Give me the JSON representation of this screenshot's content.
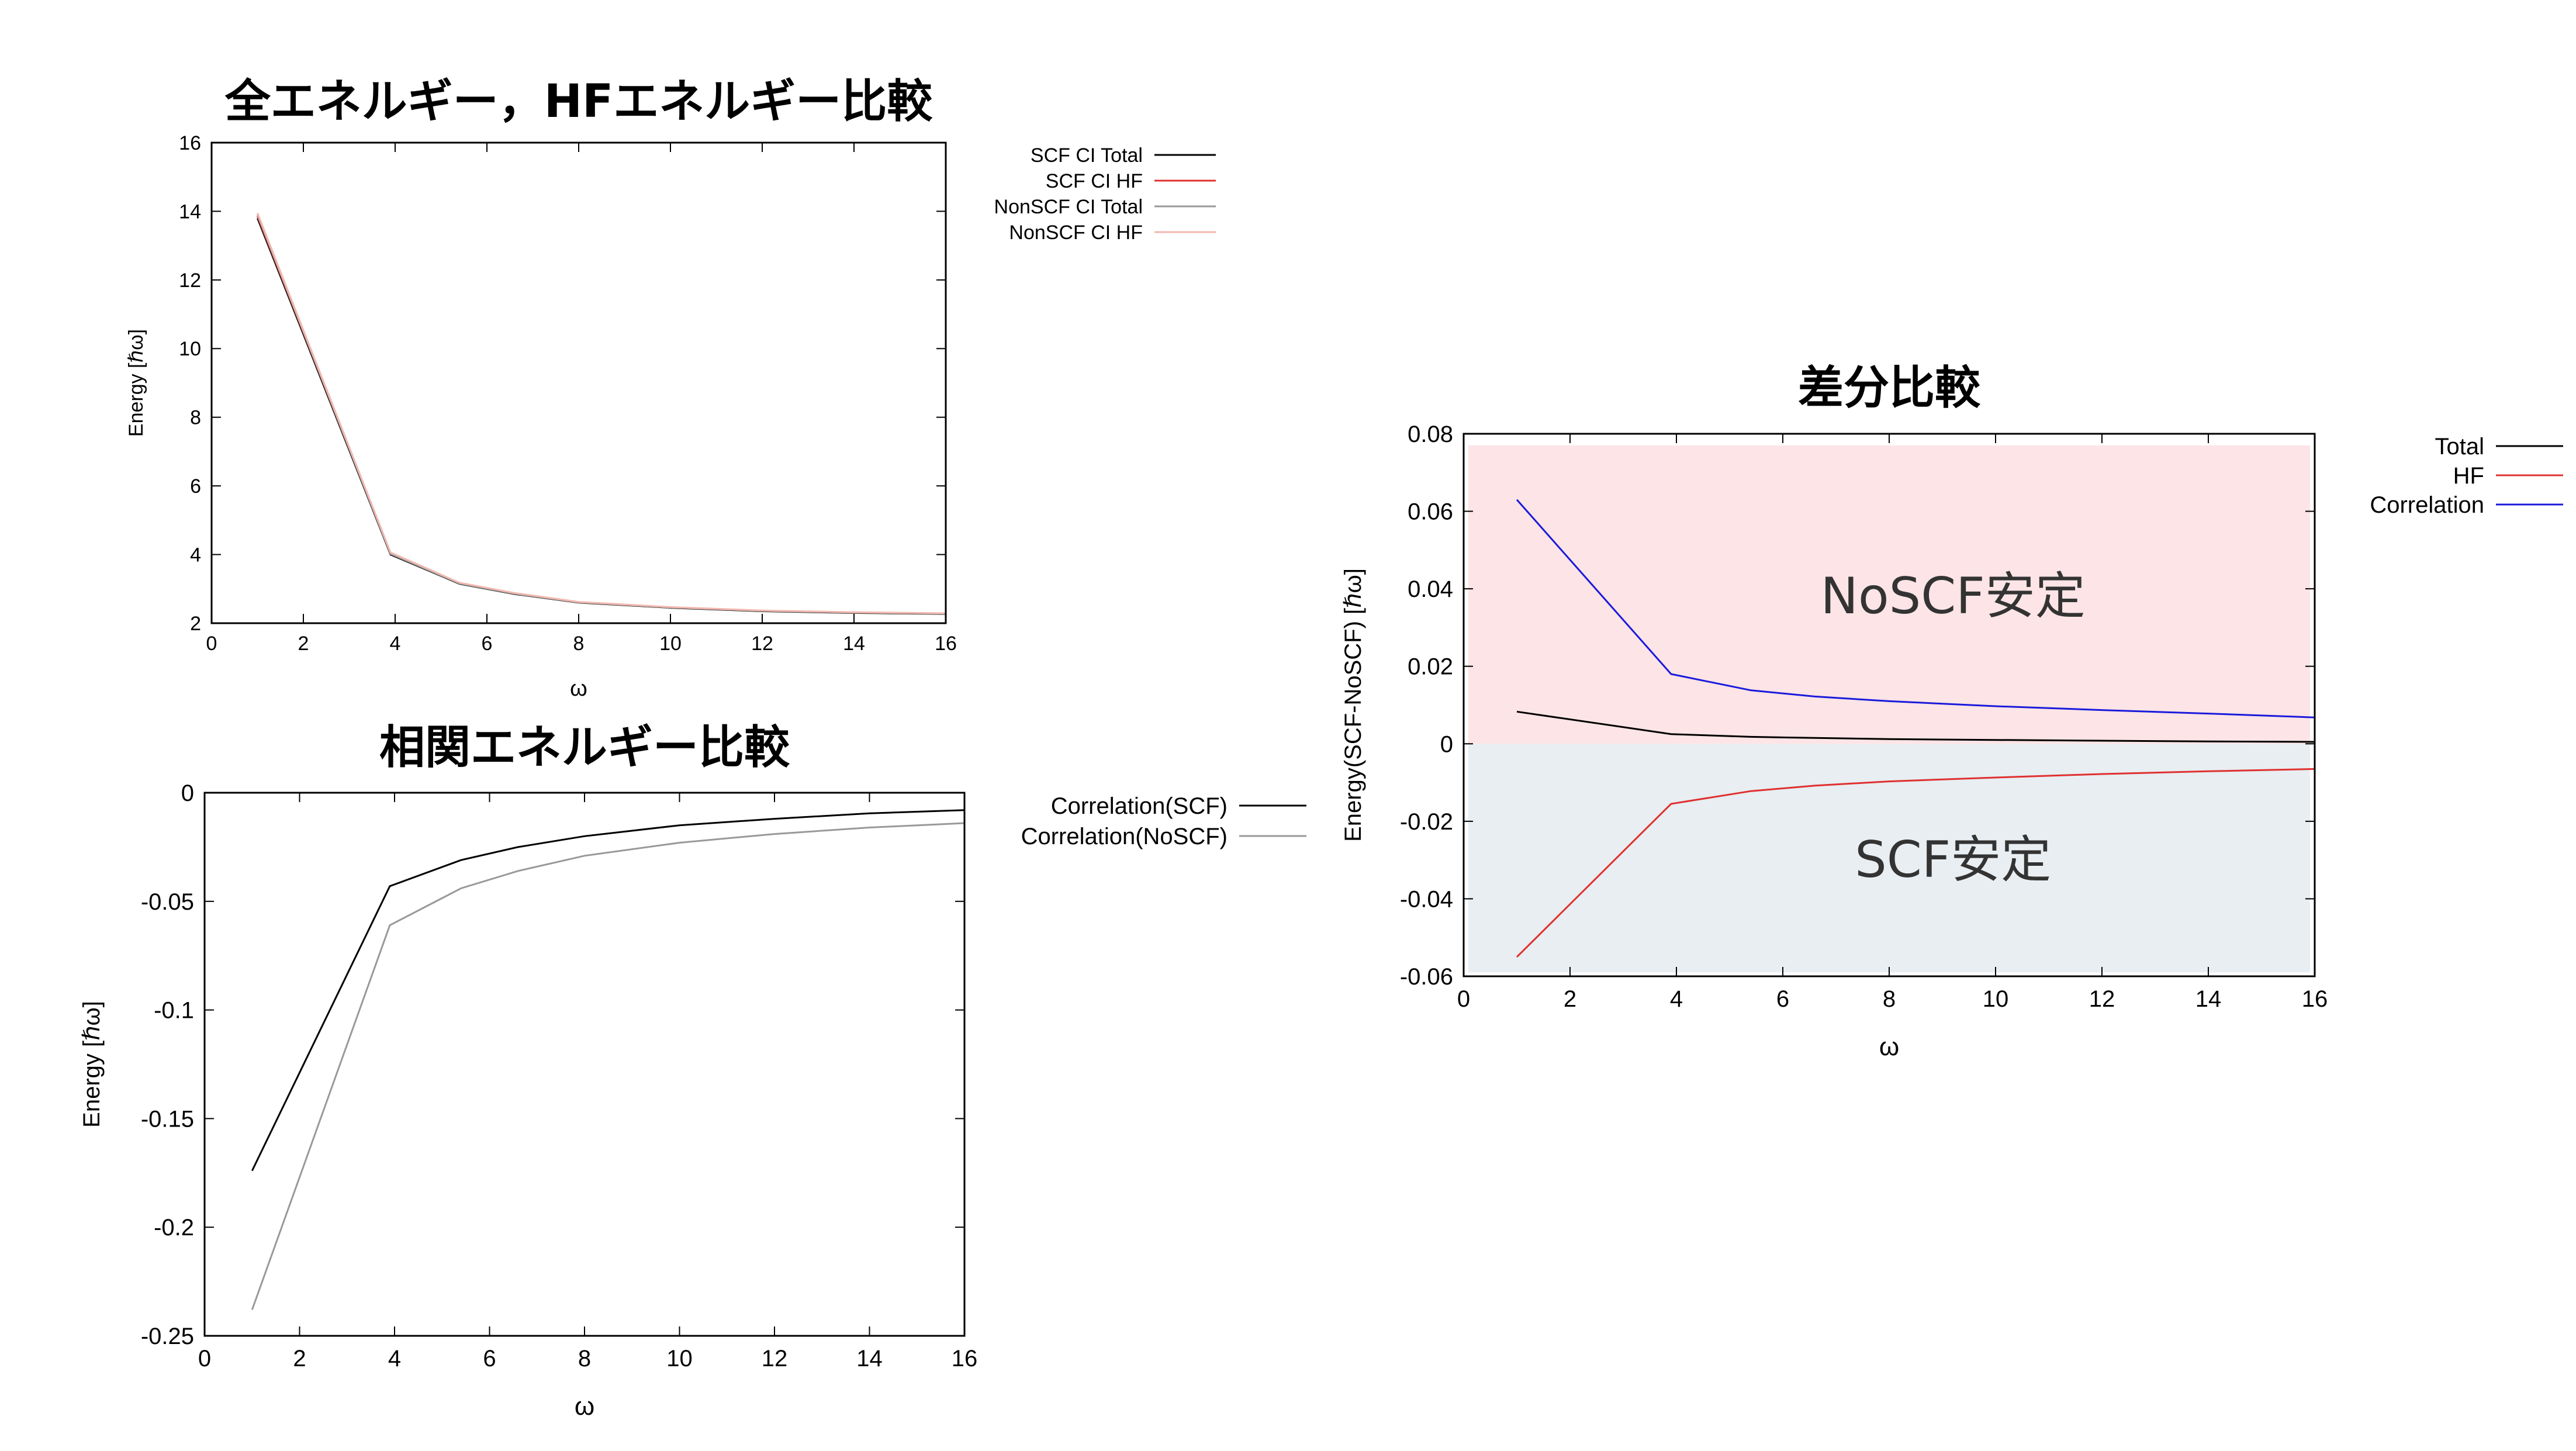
{
  "chart_data": [
    {
      "type": "line",
      "title": "全エネルギー，HFエネルギー比較",
      "xlabel": "ω",
      "ylabel": "Energy [ℏω]",
      "xlim": [
        0,
        16
      ],
      "ylim": [
        2,
        16
      ],
      "xticks": [
        "0",
        "2",
        "4",
        "6",
        "8",
        "10",
        "12",
        "14",
        "16"
      ],
      "yticks": [
        "2",
        "4",
        "6",
        "8",
        "10",
        "12",
        "14",
        "16"
      ],
      "legend_position": "right-outside-top",
      "series": [
        {
          "name": "SCF CI Total",
          "color": "#000000",
          "x": [
            1,
            3.9,
            5.4,
            6.6,
            8,
            10,
            12,
            14,
            16
          ],
          "y": [
            13.8,
            4.0,
            3.15,
            2.85,
            2.6,
            2.45,
            2.35,
            2.3,
            2.27
          ]
        },
        {
          "name": "SCF CI HF",
          "color": "#e03030",
          "x": [
            1,
            3.9,
            5.4,
            6.6,
            8,
            10,
            12,
            14,
            16
          ],
          "y": [
            13.86,
            4.04,
            3.17,
            2.87,
            2.61,
            2.46,
            2.36,
            2.31,
            2.28
          ]
        },
        {
          "name": "NonSCF CI Total",
          "color": "#999999",
          "x": [
            1,
            3.9,
            5.4,
            6.6,
            8,
            10,
            12,
            14,
            16
          ],
          "y": [
            13.9,
            4.02,
            3.16,
            2.86,
            2.61,
            2.46,
            2.36,
            2.31,
            2.28
          ]
        },
        {
          "name": "NonSCF CI HF",
          "color": "#f2b8b0",
          "x": [
            1,
            3.9,
            5.4,
            6.6,
            8,
            10,
            12,
            14,
            16
          ],
          "y": [
            13.95,
            4.06,
            3.18,
            2.88,
            2.62,
            2.47,
            2.37,
            2.32,
            2.29
          ]
        }
      ]
    },
    {
      "type": "line",
      "title": "相関エネルギー比較",
      "xlabel": "ω",
      "ylabel": "Energy [ℏω]",
      "xlim": [
        0,
        16
      ],
      "ylim": [
        -0.25,
        0
      ],
      "xticks": [
        "0",
        "2",
        "4",
        "6",
        "8",
        "10",
        "12",
        "14",
        "16"
      ],
      "yticks": [
        "0",
        "-0.05",
        "-0.1",
        "-0.15",
        "-0.2",
        "-0.25"
      ],
      "legend_position": "right-outside-top",
      "series": [
        {
          "name": "Correlation(SCF)",
          "color": "#000000",
          "x": [
            1,
            3.9,
            5.4,
            6.6,
            8,
            10,
            12,
            14,
            16
          ],
          "y": [
            -0.174,
            -0.043,
            -0.031,
            -0.025,
            -0.02,
            -0.015,
            -0.012,
            -0.0095,
            -0.008
          ]
        },
        {
          "name": "Correlation(NoSCF)",
          "color": "#999999",
          "x": [
            1,
            3.9,
            5.4,
            6.6,
            8,
            10,
            12,
            14,
            16
          ],
          "y": [
            -0.238,
            -0.061,
            -0.044,
            -0.036,
            -0.029,
            -0.023,
            -0.019,
            -0.016,
            -0.014
          ]
        }
      ]
    },
    {
      "type": "line",
      "title": "差分比較",
      "xlabel": "ω",
      "ylabel": "Energy(SCF-NoSCF) [ℏω]",
      "xlim": [
        0,
        16
      ],
      "ylim": [
        -0.06,
        0.08
      ],
      "xticks": [
        "0",
        "2",
        "4",
        "6",
        "8",
        "10",
        "12",
        "14",
        "16"
      ],
      "yticks": [
        "0.08",
        "0.06",
        "0.04",
        "0.02",
        "0",
        "-0.02",
        "-0.04",
        "-0.06"
      ],
      "legend_position": "right-outside-top",
      "regions": [
        {
          "label": "NoSCF安定",
          "y_from": 0,
          "y_to": 0.077,
          "color": "#fde4e6"
        },
        {
          "label": "SCF安定",
          "y_from": -0.059,
          "y_to": 0,
          "color": "#e8eef1"
        }
      ],
      "series": [
        {
          "name": "Total",
          "color": "#000000",
          "x": [
            1,
            3.9,
            5.4,
            6.6,
            8,
            10,
            12,
            14,
            16
          ],
          "y": [
            0.0083,
            0.0025,
            0.0018,
            0.0015,
            0.0012,
            0.001,
            0.0008,
            0.0006,
            0.0005
          ]
        },
        {
          "name": "HF",
          "color": "#e03030",
          "x": [
            1,
            3.9,
            5.4,
            6.6,
            8,
            10,
            12,
            14,
            16
          ],
          "y": [
            -0.055,
            -0.0155,
            -0.0122,
            -0.0108,
            -0.0097,
            -0.0087,
            -0.0078,
            -0.0071,
            -0.0065
          ]
        },
        {
          "name": "Correlation",
          "color": "#1a1adc",
          "x": [
            1,
            3.9,
            5.4,
            6.6,
            8,
            10,
            12,
            14,
            16
          ],
          "y": [
            0.063,
            0.018,
            0.0138,
            0.0122,
            0.011,
            0.0097,
            0.0087,
            0.0078,
            0.0068
          ]
        }
      ]
    }
  ]
}
